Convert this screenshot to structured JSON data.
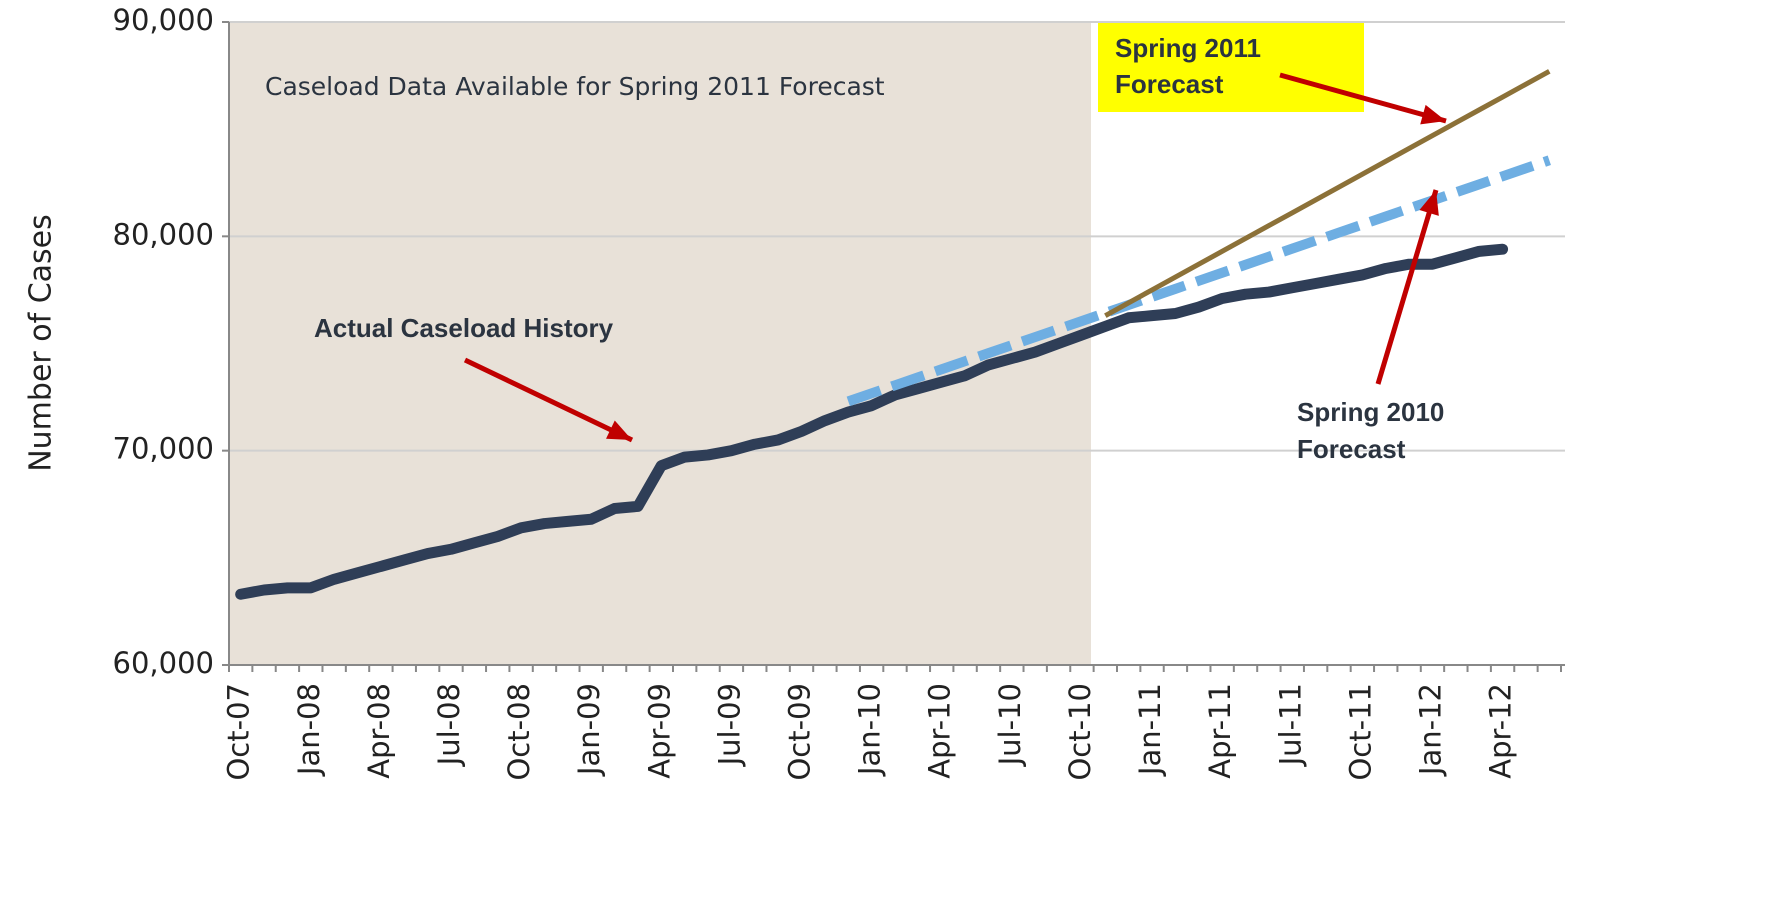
{
  "chart_data": {
    "type": "line",
    "y_label": "Number of Cases",
    "annotations": [
      [
        "Caseload Data Available for Spring 2011 Forecast"
      ],
      [
        "Actual Caseload History"
      ],
      [
        "Spring 2011",
        "Forecast"
      ],
      [
        "Spring 2010",
        "Forecast"
      ]
    ],
    "categories": [
      "Oct-07",
      null,
      null,
      "Jan-08",
      null,
      null,
      "Apr-08",
      null,
      null,
      "Jul-08",
      null,
      null,
      "Oct-08",
      null,
      null,
      "Jan-09",
      null,
      null,
      "Apr-09",
      null,
      null,
      "Jul-09",
      null,
      null,
      "Oct-09",
      null,
      null,
      "Jan-10",
      null,
      null,
      "Apr-10",
      null,
      null,
      "Jul-10",
      null,
      null,
      "Oct-10",
      null,
      null,
      "Jan-11",
      null,
      null,
      "Apr-11",
      null,
      null,
      "Jul-11",
      null,
      null,
      "Oct-11",
      null,
      null,
      "Jan-12",
      null,
      null,
      "Apr-12",
      null,
      null
    ],
    "series": [
      {
        "color": "#2f3e57",
        "values": [
          63300,
          63500,
          63600,
          63600,
          64000,
          64300,
          64600,
          64900,
          65200,
          65400,
          65700,
          66000,
          66400,
          66600,
          66700,
          66800,
          67300,
          67400,
          69300,
          69700,
          69800,
          70000,
          70300,
          70500,
          70900,
          71400,
          71800,
          72100,
          72600,
          72900,
          73200,
          73500,
          74000,
          74300,
          74600,
          75000,
          75400,
          75800,
          76200,
          76300,
          76400,
          76700,
          77100,
          77300,
          77400,
          77600,
          77800,
          78000,
          78200,
          78500,
          78700,
          78700,
          79000,
          79300,
          79400,
          null,
          null
        ]
      },
      {
        "color": "#8c7138",
        "values": [
          null,
          null,
          null,
          null,
          null,
          null,
          null,
          null,
          null,
          null,
          null,
          null,
          null,
          null,
          null,
          null,
          null,
          null,
          null,
          null,
          null,
          null,
          null,
          null,
          null,
          null,
          null,
          null,
          null,
          null,
          null,
          null,
          null,
          null,
          null,
          null,
          null,
          76300,
          76900,
          77500,
          78100,
          78700,
          79300,
          79900,
          80500,
          81100,
          81700,
          82300,
          82900,
          83500,
          84100,
          84700,
          85300,
          85900,
          86500,
          87100,
          87700
        ]
      },
      {
        "color": "#6eaee2",
        "dashed": true,
        "values": [
          null,
          null,
          null,
          null,
          null,
          null,
          null,
          null,
          null,
          null,
          null,
          null,
          null,
          null,
          null,
          null,
          null,
          null,
          null,
          null,
          null,
          null,
          null,
          null,
          null,
          null,
          72300,
          72675,
          73050,
          73425,
          73800,
          74175,
          74550,
          74925,
          75300,
          75675,
          76050,
          76425,
          76800,
          77175,
          77550,
          77925,
          78300,
          78675,
          79050,
          79425,
          79800,
          80175,
          80550,
          80925,
          81300,
          81675,
          82050,
          82425,
          82800,
          83175,
          83550
        ]
      }
    ],
    "ylim": [
      60000,
      90000
    ],
    "yticks": [
      {
        "value": 60000,
        "label": "60,000"
      },
      {
        "value": 70000,
        "label": "70,000"
      },
      {
        "value": 80000,
        "label": "80,000"
      },
      {
        "value": 90000,
        "label": "90,000"
      }
    ],
    "grid": true
  }
}
